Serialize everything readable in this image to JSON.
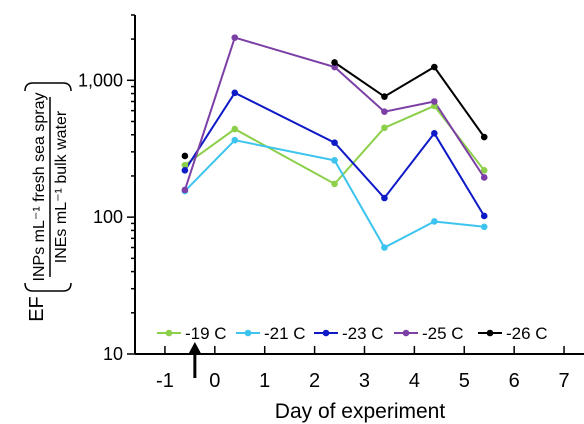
{
  "chart_data": {
    "type": "line",
    "xlabel": "Day of experiment",
    "ylabel": {
      "prefix": "EF",
      "numerator": "INPs mL⁻¹ fresh sea spray",
      "denominator": "INEs mL⁻¹ bulk water"
    },
    "yscale": "log",
    "xlim": [
      -1.6,
      7.4
    ],
    "ylim": [
      10,
      3000
    ],
    "x_ticks": [
      -1,
      0,
      1,
      2,
      3,
      4,
      5,
      6,
      7
    ],
    "x_tick_labels": [
      "-1",
      "0",
      "1",
      "2",
      "3",
      "4",
      "5",
      "6",
      "7"
    ],
    "y_ticks": [
      10,
      100,
      1000
    ],
    "y_tick_labels": [
      "10",
      "100",
      "1,000"
    ],
    "grid": false,
    "legend_position": "bottom",
    "annotation": "arrow",
    "series": [
      {
        "name": "-19 C",
        "color": "#8ccf4a",
        "x": [
          -0.6,
          0.4,
          2.4,
          3.4,
          4.4,
          5.4
        ],
        "y": [
          240,
          440,
          175,
          450,
          650,
          220
        ]
      },
      {
        "name": "-21 C",
        "color": "#3cc4ee",
        "x": [
          -0.6,
          0.4,
          2.4,
          3.4,
          4.4,
          5.4
        ],
        "y": [
          155,
          365,
          260,
          60,
          93,
          85
        ]
      },
      {
        "name": "-23 C",
        "color": "#0f1ac7",
        "x": [
          -0.6,
          0.4,
          2.4,
          3.4,
          4.4,
          5.4
        ],
        "y": [
          220,
          810,
          350,
          138,
          410,
          102
        ]
      },
      {
        "name": "-25 C",
        "color": "#7b3fa6",
        "x": [
          -0.6,
          0.4,
          2.4,
          3.4,
          4.4,
          5.4
        ],
        "y": [
          158,
          2050,
          1250,
          590,
          700,
          195
        ]
      },
      {
        "name": "-26 C",
        "color": "#000000",
        "x": [
          -0.6,
          2.4,
          3.4,
          4.4,
          5.4
        ],
        "y": [
          280,
          1350,
          760,
          1250,
          385
        ],
        "segments": [
          [
            2.4,
            3.4,
            4.4,
            5.4
          ]
        ]
      }
    ]
  }
}
